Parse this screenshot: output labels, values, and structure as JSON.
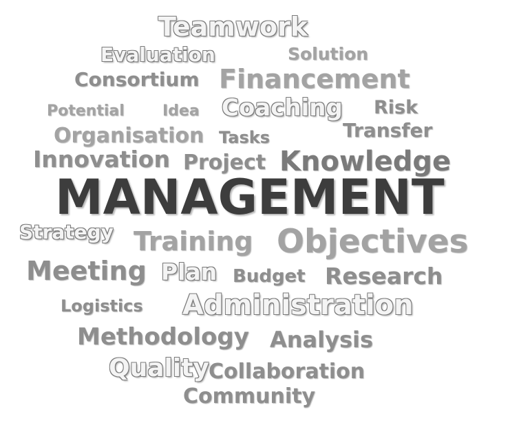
{
  "words": {
    "teamwork": "Teamwork",
    "evaluation": "Evaluation",
    "solution": "Solution",
    "consortium": "Consortium",
    "financement": "Financement",
    "potential": "Potential",
    "idea": "Idea",
    "coaching": "Coaching",
    "risk": "Risk",
    "organisation": "Organisation",
    "tasks": "Tasks",
    "transfer": "Transfer",
    "innovation": "Innovation",
    "project": "Project",
    "knowledge": "Knowledge",
    "management": "MANAGEMENT",
    "strategy": "Strategy",
    "training": "Training",
    "objectives": "Objectives",
    "meeting": "Meeting",
    "plan": "Plan",
    "budget": "Budget",
    "research": "Research",
    "logistics": "Logistics",
    "administration": "Administration",
    "methodology": "Methodology",
    "analysis": "Analysis",
    "quality": "Quality",
    "collaboration": "Collaboration",
    "community": "Community"
  },
  "colors": {
    "background": "#ffffff",
    "primary_word": "#3d3d3d",
    "secondary_word": "#8c8c8c"
  }
}
